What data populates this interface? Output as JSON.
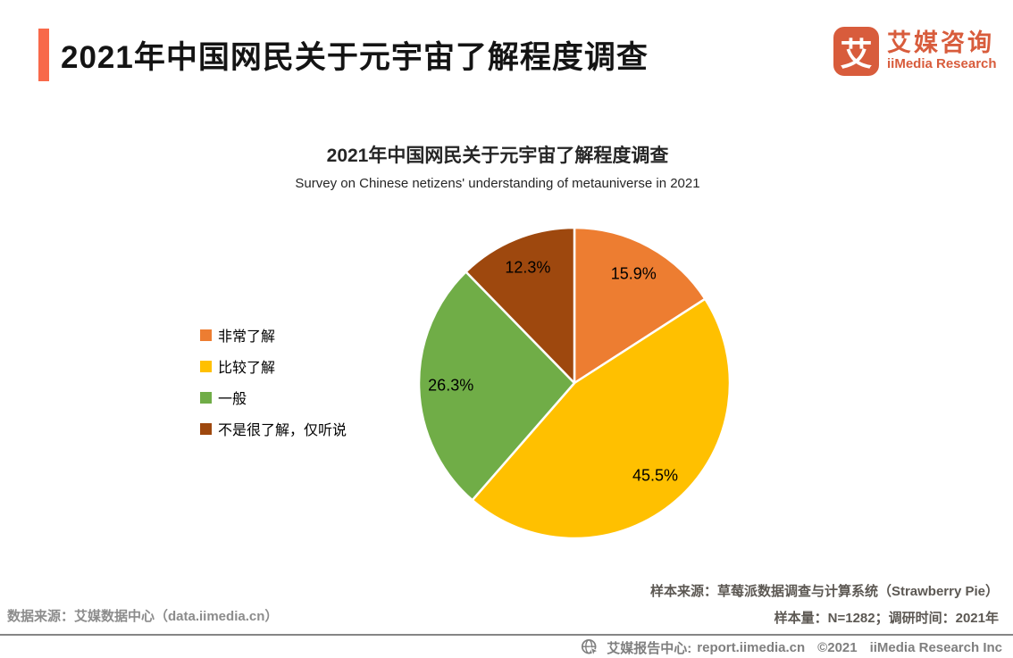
{
  "page": {
    "background": "#ffffff"
  },
  "header": {
    "title": "2021年中国网民关于元宇宙了解程度调查",
    "accent_color": "#F8694A",
    "logo": {
      "glyph": "艾",
      "name_cn": "艾媒咨询",
      "name_en": "iiMedia Research",
      "color": "#D85C3C"
    }
  },
  "chart": {
    "title": "2021年中国网民关于元宇宙了解程度调查",
    "subtitle": "Survey on Chinese netizens' understanding of metauniverse in 2021"
  },
  "chart_data": {
    "type": "pie",
    "title": "2021年中国网民关于元宇宙了解程度调查",
    "subtitle": "Survey on Chinese netizens' understanding of metauniverse in 2021",
    "unit": "percent",
    "start_angle_deg": 0,
    "direction": "clockwise",
    "legend_position": "left",
    "slice_separator_color": "#ffffff",
    "slices": [
      {
        "label": "非常了解",
        "value": 15.9,
        "display": "15.9%",
        "color": "#ED7D31"
      },
      {
        "label": "比较了解",
        "value": 45.5,
        "display": "45.5%",
        "color": "#FFC000"
      },
      {
        "label": "一般",
        "value": 26.3,
        "display": "26.3%",
        "color": "#70AD47"
      },
      {
        "label": "不是很了解，仅听说",
        "value": 12.3,
        "display": "12.3%",
        "color": "#9E480E"
      }
    ]
  },
  "notes": {
    "sample_source": "样本来源：草莓派数据调查与计算系统（Strawberry Pie）",
    "sample_info": "样本量：N=1282；调研时间：2021年",
    "data_source": "数据来源：艾媒数据中心（data.iimedia.cn）"
  },
  "footer": {
    "report_center_label": "艾媒报告中心:",
    "report_center_url": "report.iimedia.cn",
    "copyright": "©2021",
    "company": "iiMedia Research Inc"
  }
}
